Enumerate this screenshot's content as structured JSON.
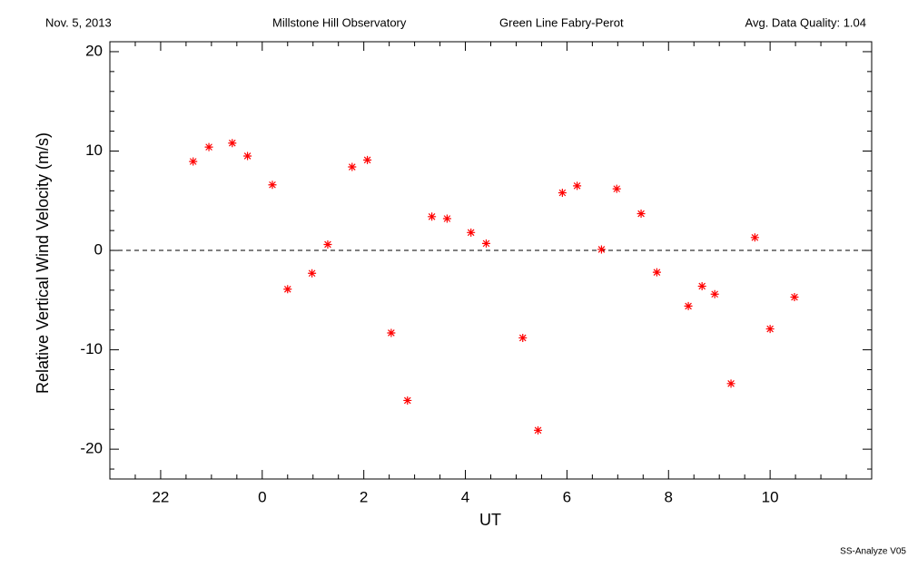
{
  "chart_data": {
    "type": "scatter",
    "header": [
      "Nov. 5, 2013",
      "Millstone Hill Observatory",
      "Green Line Fabry-Perot",
      "Avg. Data Quality: 1.04"
    ],
    "footer": "SS-Analyze V05",
    "xlabel": "UT",
    "ylabel": "Relative Vertical Wind Velocity (m/s)",
    "xlim": [
      21,
      36
    ],
    "ylim": [
      -23,
      21
    ],
    "xticks": [
      {
        "value": 22,
        "label": "22"
      },
      {
        "value": 24,
        "label": "0"
      },
      {
        "value": 26,
        "label": "2"
      },
      {
        "value": 28,
        "label": "4"
      },
      {
        "value": 30,
        "label": "6"
      },
      {
        "value": 32,
        "label": "8"
      },
      {
        "value": 34,
        "label": "10"
      }
    ],
    "yticks": [
      -20,
      -10,
      0,
      10,
      20
    ],
    "minor_xticks": [
      21.5,
      22.5,
      23,
      23.5,
      24.5,
      25,
      25.5,
      26.5,
      27,
      27.5,
      28.5,
      29,
      29.5,
      30.5,
      31,
      31.5,
      32.5,
      33,
      33.5,
      34.5,
      35,
      35.5
    ],
    "minor_yticks": [
      -22,
      -18,
      -16,
      -14,
      -12,
      -8,
      -6,
      -4,
      -2,
      2,
      4,
      6,
      8,
      12,
      14,
      16,
      18
    ],
    "reference_line": 0,
    "color": "#ff0000",
    "x": [
      22.64,
      22.95,
      23.41,
      23.71,
      24.2,
      24.5,
      24.98,
      25.29,
      25.77,
      26.07,
      26.54,
      26.86,
      27.34,
      27.64,
      28.11,
      28.41,
      29.13,
      29.43,
      29.91,
      30.2,
      30.68,
      30.98,
      31.46,
      31.77,
      32.39,
      32.66,
      32.91,
      33.23,
      33.7,
      34.0,
      34.48
    ],
    "values": [
      8.95,
      10.4,
      10.8,
      9.5,
      6.6,
      -3.9,
      -2.3,
      0.6,
      8.4,
      9.1,
      -8.3,
      -15.1,
      3.4,
      3.2,
      1.8,
      0.7,
      -8.8,
      -18.1,
      5.8,
      6.5,
      0.1,
      6.2,
      3.7,
      -2.2,
      -5.6,
      -3.6,
      -4.4,
      -13.4,
      1.3,
      -7.9,
      -4.7
    ]
  }
}
